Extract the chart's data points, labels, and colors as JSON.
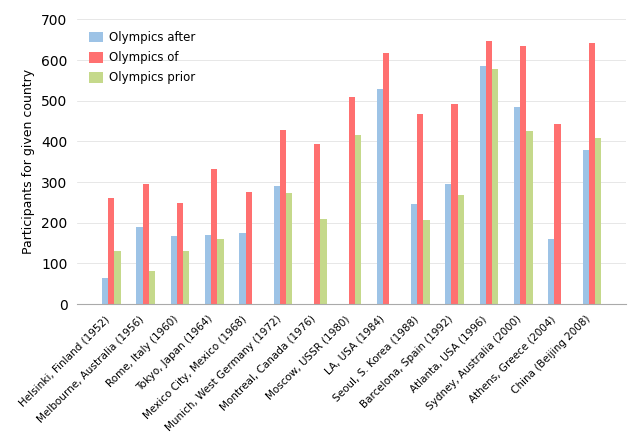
{
  "categories": [
    "Helsinki, Finland (1952)",
    "Melbourne, Australia (1956)",
    "Rome, Italy (1960)",
    "Tokyo, Japan (1964)",
    "Mexico City, Mexico (1968)",
    "Munich, West Germany (1972)",
    "Montreal, Canada (1976)",
    "Moscow, USSR (1980)",
    "LA, USA (1984)",
    "Seoul, S. Korea (1988)",
    "Barcelona, Spain (1992)",
    "Atlanta, USA (1996)",
    "Sydney, Australia (2000)",
    "Athens, Greece (2004)",
    "China (Beijing 2008)"
  ],
  "olympics_after": [
    65,
    190,
    167,
    170,
    175,
    290,
    0,
    0,
    530,
    245,
    295,
    585,
    485,
    160,
    380
  ],
  "olympics_of": [
    260,
    295,
    248,
    333,
    275,
    428,
    393,
    510,
    618,
    468,
    492,
    648,
    635,
    443,
    643
  ],
  "olympics_prior": [
    130,
    82,
    130,
    160,
    0,
    273,
    210,
    415,
    0,
    207,
    267,
    578,
    425,
    0,
    408
  ],
  "bar_color_after": "#9DC3E6",
  "bar_color_of": "#FF7070",
  "bar_color_prior": "#C5D98B",
  "ylabel": "Participants for given country",
  "ylim": [
    0,
    700
  ],
  "yticks": [
    0,
    100,
    200,
    300,
    400,
    500,
    600,
    700
  ],
  "legend_labels": [
    "Olympics after",
    "Olympics of",
    "Olympics prior"
  ],
  "bar_width": 0.18,
  "figsize": [
    6.4,
    4.47
  ],
  "dpi": 100
}
